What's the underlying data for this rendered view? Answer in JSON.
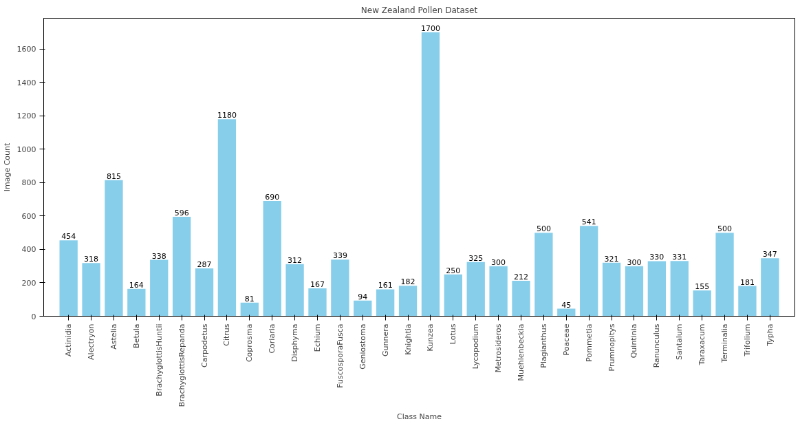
{
  "chart_data": {
    "type": "bar",
    "title": "New Zealand Pollen Dataset",
    "xlabel": "Class Name",
    "ylabel": "Image Count",
    "categories": [
      "Actinidia",
      "Alectryon",
      "Astelia",
      "Betula",
      "BrachyglottisHuntii",
      "BrachyglottisRepanda",
      "Carpodetus",
      "Citrus",
      "Coprosma",
      "Coriaria",
      "Disphyma",
      "Echium",
      "FuscosporaFusca",
      "Geniostoma",
      "Gunnera",
      "Knightia",
      "Kunzea",
      "Lotus",
      "Lycopodium",
      "Metrosideros",
      "Muehlenbeckia",
      "Plagianthus",
      "Poaceae",
      "Pommetia",
      "Prumnopitys",
      "Quintinia",
      "Ranunculus",
      "Santalum",
      "Taraxacum",
      "Terminalia",
      "Trifolium",
      "Typha"
    ],
    "values": [
      454,
      318,
      815,
      164,
      338,
      596,
      287,
      1180,
      81,
      690,
      312,
      167,
      339,
      94,
      161,
      182,
      1700,
      250,
      325,
      300,
      212,
      500,
      45,
      541,
      321,
      300,
      330,
      331,
      155,
      500,
      181,
      347
    ],
    "color": "#87ceeb",
    "ylim": [
      0,
      1785
    ],
    "yticks": [
      0,
      200,
      400,
      600,
      800,
      1000,
      1200,
      1400,
      1600
    ],
    "data_labels": true,
    "grid": false
  }
}
